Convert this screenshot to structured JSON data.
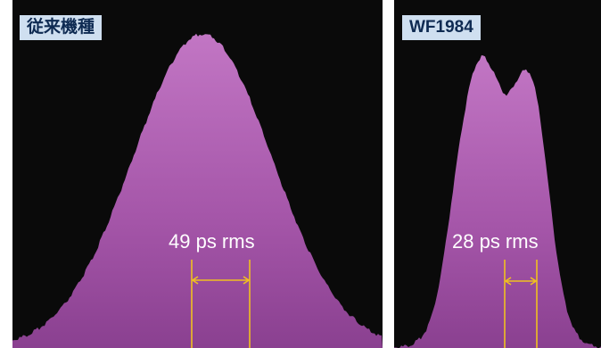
{
  "panels": [
    {
      "label": "従来機種",
      "jitter_value": 49,
      "jitter_text": "49 ps rms",
      "profile": "single-peak"
    },
    {
      "label": "WF1984",
      "jitter_value": 28,
      "jitter_text": "28 ps rms",
      "profile": "double-peak"
    }
  ],
  "colors": {
    "background": "#0a0a0a",
    "histogram_fill": "#a455a8",
    "histogram_fill_light": "#c276c4",
    "marker": "#f0c020",
    "tag_background": "#cfdff0",
    "tag_text": "#0e2a52",
    "measurement_text": "#ffffff"
  }
}
